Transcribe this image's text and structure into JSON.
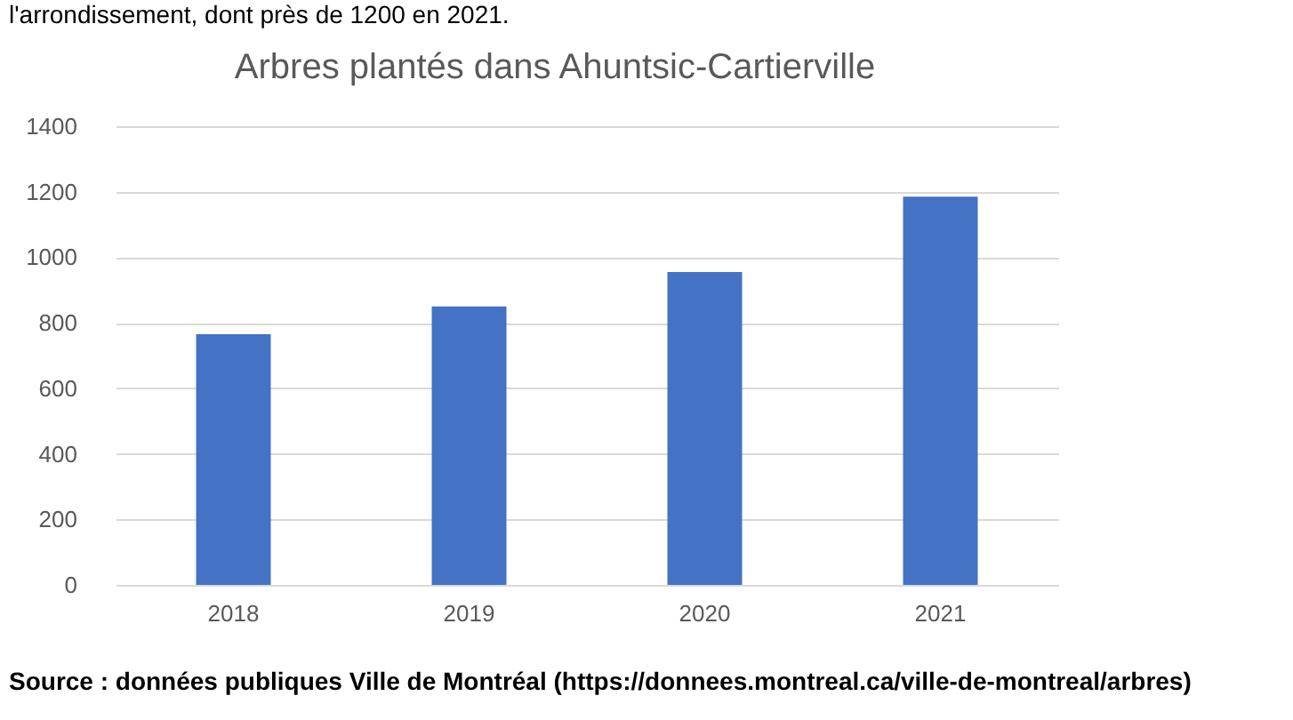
{
  "chart_data": {
    "type": "bar",
    "title": "Arbres plantés dans Ahuntsic-Cartierville",
    "categories": [
      "2018",
      "2019",
      "2020",
      "2021"
    ],
    "values": [
      765,
      850,
      955,
      1185
    ],
    "color": "#4472c4",
    "ylim": [
      0,
      1400
    ],
    "yticks": [
      0,
      200,
      400,
      600,
      800,
      1000,
      1200,
      1400
    ],
    "grid": "y",
    "annotations": [
      "l'arrondissement, dont près de 1200 en 2021.",
      "Source : données publiques Ville de Montréal (https://donnees.montreal.ca/ville-de-montreal/arbres)"
    ]
  }
}
